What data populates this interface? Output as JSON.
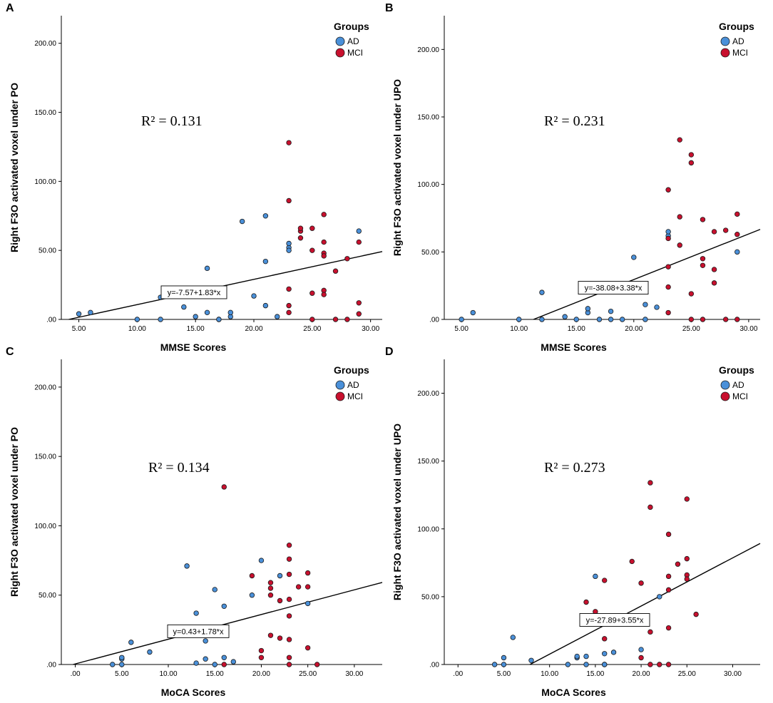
{
  "colors": {
    "AD": "#4a90d9",
    "MCI": "#c8102e",
    "line": "#000000"
  },
  "legend": {
    "title": "Groups",
    "items": [
      "AD",
      "MCI"
    ]
  },
  "chart_data": [
    {
      "type": "scatter",
      "panel": "A",
      "xlabel": "MMSE Scores",
      "ylabel": "Right F3O activated voxel under PO",
      "xlim": [
        3.5,
        31.0
      ],
      "ylim": [
        0,
        220
      ],
      "xticks": [
        5,
        10,
        15,
        20,
        25,
        30
      ],
      "xtick_labels": [
        "5.00",
        "10.00",
        "15.00",
        "20.00",
        "25.00",
        "30.00"
      ],
      "yticks": [
        0,
        50,
        100,
        150,
        200
      ],
      "ytick_labels": [
        ".00",
        "50.00",
        "100.00",
        "150.00",
        "200.00"
      ],
      "r2_label": "R² = 0.131",
      "equation": "y=-7.57+1.83*x",
      "fit": {
        "intercept": -7.57,
        "slope": 1.83
      },
      "series": [
        {
          "name": "AD",
          "points": [
            [
              5,
              4
            ],
            [
              6,
              5
            ],
            [
              10,
              0
            ],
            [
              12,
              0
            ],
            [
              12,
              16
            ],
            [
              14,
              9
            ],
            [
              15,
              2
            ],
            [
              16,
              5
            ],
            [
              16,
              37
            ],
            [
              17,
              0
            ],
            [
              17,
              0
            ],
            [
              18,
              2
            ],
            [
              18,
              5
            ],
            [
              19,
              71
            ],
            [
              20,
              17
            ],
            [
              21,
              10
            ],
            [
              21,
              42
            ],
            [
              21,
              75
            ],
            [
              22,
              2
            ],
            [
              23,
              52
            ],
            [
              23,
              55
            ],
            [
              23,
              50
            ],
            [
              29,
              64
            ]
          ]
        },
        {
          "name": "MCI",
          "points": [
            [
              23,
              128
            ],
            [
              23,
              86
            ],
            [
              23,
              22
            ],
            [
              23,
              10
            ],
            [
              23,
              5
            ],
            [
              24,
              59
            ],
            [
              24,
              64
            ],
            [
              24,
              66
            ],
            [
              25,
              66
            ],
            [
              25,
              50
            ],
            [
              25,
              19
            ],
            [
              25,
              0
            ],
            [
              26,
              76
            ],
            [
              26,
              56
            ],
            [
              26,
              48
            ],
            [
              26,
              46
            ],
            [
              26,
              21
            ],
            [
              26,
              18
            ],
            [
              27,
              35
            ],
            [
              27,
              0
            ],
            [
              28,
              44
            ],
            [
              28,
              0
            ],
            [
              29,
              56
            ],
            [
              29,
              12
            ],
            [
              29,
              4
            ]
          ]
        }
      ]
    },
    {
      "type": "scatter",
      "panel": "B",
      "xlabel": "MMSE Scores",
      "ylabel": "Right F3O activated voxel under UPO",
      "xlim": [
        3.5,
        31.0
      ],
      "ylim": [
        0,
        225
      ],
      "xticks": [
        5,
        10,
        15,
        20,
        25,
        30
      ],
      "xtick_labels": [
        "5.00",
        "10.00",
        "15.00",
        "20.00",
        "25.00",
        "30.00"
      ],
      "yticks": [
        0,
        50,
        100,
        150,
        200
      ],
      "ytick_labels": [
        ".00",
        "50.00",
        "100.00",
        "150.00",
        "200.00"
      ],
      "r2_label": "R² = 0.231",
      "equation": "y=-38.08+3.38*x",
      "fit": {
        "intercept": -38.08,
        "slope": 3.38
      },
      "series": [
        {
          "name": "AD",
          "points": [
            [
              5,
              0
            ],
            [
              6,
              5
            ],
            [
              10,
              0
            ],
            [
              12,
              0
            ],
            [
              12,
              20
            ],
            [
              14,
              2
            ],
            [
              15,
              0
            ],
            [
              16,
              5
            ],
            [
              16,
              8
            ],
            [
              17,
              0
            ],
            [
              18,
              6
            ],
            [
              18,
              0
            ],
            [
              19,
              0
            ],
            [
              20,
              46
            ],
            [
              21,
              11
            ],
            [
              21,
              0
            ],
            [
              22,
              9
            ],
            [
              23,
              62
            ],
            [
              23,
              65
            ],
            [
              29,
              50
            ]
          ]
        },
        {
          "name": "MCI",
          "points": [
            [
              23,
              96
            ],
            [
              23,
              60
            ],
            [
              23,
              39
            ],
            [
              23,
              24
            ],
            [
              23,
              5
            ],
            [
              24,
              133
            ],
            [
              24,
              76
            ],
            [
              24,
              55
            ],
            [
              25,
              122
            ],
            [
              25,
              116
            ],
            [
              25,
              19
            ],
            [
              25,
              0
            ],
            [
              26,
              74
            ],
            [
              26,
              45
            ],
            [
              26,
              40
            ],
            [
              26,
              0
            ],
            [
              27,
              65
            ],
            [
              27,
              37
            ],
            [
              27,
              27
            ],
            [
              28,
              66
            ],
            [
              28,
              0
            ],
            [
              29,
              78
            ],
            [
              29,
              63
            ],
            [
              29,
              0
            ]
          ]
        }
      ]
    },
    {
      "type": "scatter",
      "panel": "C",
      "xlabel": "MoCA Scores",
      "ylabel": "Right F3O activated voxel under PO",
      "xlim": [
        -1.5,
        33.0
      ],
      "ylim": [
        0,
        220
      ],
      "xticks": [
        0,
        5,
        10,
        15,
        20,
        25,
        30
      ],
      "xtick_labels": [
        ".00",
        "5.00",
        "10.00",
        "15.00",
        "20.00",
        "25.00",
        "30.00"
      ],
      "yticks": [
        0,
        50,
        100,
        150,
        200
      ],
      "ytick_labels": [
        ".00",
        "50.00",
        "100.00",
        "150.00",
        "200.00"
      ],
      "r2_label": "R² = 0.134",
      "equation": "y=0.43+1.78*x",
      "fit": {
        "intercept": 0.43,
        "slope": 1.78
      },
      "series": [
        {
          "name": "AD",
          "points": [
            [
              4,
              0
            ],
            [
              5,
              0
            ],
            [
              5,
              4
            ],
            [
              5,
              5
            ],
            [
              6,
              16
            ],
            [
              8,
              9
            ],
            [
              12,
              71
            ],
            [
              13,
              37
            ],
            [
              13,
              1
            ],
            [
              14,
              17
            ],
            [
              14,
              4
            ],
            [
              15,
              54
            ],
            [
              15,
              0
            ],
            [
              16,
              42
            ],
            [
              16,
              5
            ],
            [
              17,
              2
            ],
            [
              19,
              50
            ],
            [
              20,
              75
            ],
            [
              22,
              64
            ],
            [
              25,
              44
            ]
          ]
        },
        {
          "name": "MCI",
          "points": [
            [
              15,
              22
            ],
            [
              16,
              128
            ],
            [
              16,
              0
            ],
            [
              19,
              64
            ],
            [
              20,
              10
            ],
            [
              20,
              5
            ],
            [
              21,
              59
            ],
            [
              21,
              55
            ],
            [
              21,
              50
            ],
            [
              21,
              21
            ],
            [
              22,
              46
            ],
            [
              22,
              19
            ],
            [
              23,
              86
            ],
            [
              23,
              76
            ],
            [
              23,
              65
            ],
            [
              23,
              47
            ],
            [
              23,
              35
            ],
            [
              23,
              18
            ],
            [
              23,
              5
            ],
            [
              23,
              0
            ],
            [
              24,
              56
            ],
            [
              25,
              66
            ],
            [
              25,
              56
            ],
            [
              25,
              12
            ],
            [
              26,
              0
            ]
          ]
        }
      ]
    },
    {
      "type": "scatter",
      "panel": "D",
      "xlabel": "MoCA Scores",
      "ylabel": "Right F3O activated voxel under UPO",
      "xlim": [
        -1.5,
        33.0
      ],
      "ylim": [
        0,
        225
      ],
      "xticks": [
        0,
        5,
        10,
        15,
        20,
        25,
        30
      ],
      "xtick_labels": [
        ".00",
        "5.00",
        "10.00",
        "15.00",
        "20.00",
        "25.00",
        "30.00"
      ],
      "yticks": [
        0,
        50,
        100,
        150,
        200
      ],
      "ytick_labels": [
        ".00",
        "50.00",
        "100.00",
        "150.00",
        "200.00"
      ],
      "r2_label": "R² = 0.273",
      "equation": "y=-27.89+3.55*x",
      "fit": {
        "intercept": -27.89,
        "slope": 3.55
      },
      "series": [
        {
          "name": "AD",
          "points": [
            [
              4,
              0
            ],
            [
              5,
              0
            ],
            [
              5,
              5
            ],
            [
              6,
              20
            ],
            [
              8,
              3
            ],
            [
              12,
              0
            ],
            [
              13,
              5
            ],
            [
              13,
              6
            ],
            [
              14,
              0
            ],
            [
              14,
              6
            ],
            [
              15,
              65
            ],
            [
              16,
              0
            ],
            [
              16,
              8
            ],
            [
              16,
              0
            ],
            [
              17,
              9
            ],
            [
              19,
              33
            ],
            [
              20,
              11
            ],
            [
              22,
              50
            ]
          ]
        },
        {
          "name": "MCI",
          "points": [
            [
              14,
              46
            ],
            [
              15,
              39
            ],
            [
              16,
              62
            ],
            [
              16,
              19
            ],
            [
              19,
              76
            ],
            [
              20,
              60
            ],
            [
              20,
              5
            ],
            [
              21,
              134
            ],
            [
              21,
              116
            ],
            [
              21,
              24
            ],
            [
              21,
              0
            ],
            [
              22,
              0
            ],
            [
              23,
              96
            ],
            [
              23,
              65
            ],
            [
              23,
              55
            ],
            [
              23,
              27
            ],
            [
              23,
              0
            ],
            [
              24,
              74
            ],
            [
              25,
              122
            ],
            [
              25,
              78
            ],
            [
              25,
              66
            ],
            [
              25,
              63
            ],
            [
              26,
              37
            ]
          ]
        }
      ]
    }
  ]
}
